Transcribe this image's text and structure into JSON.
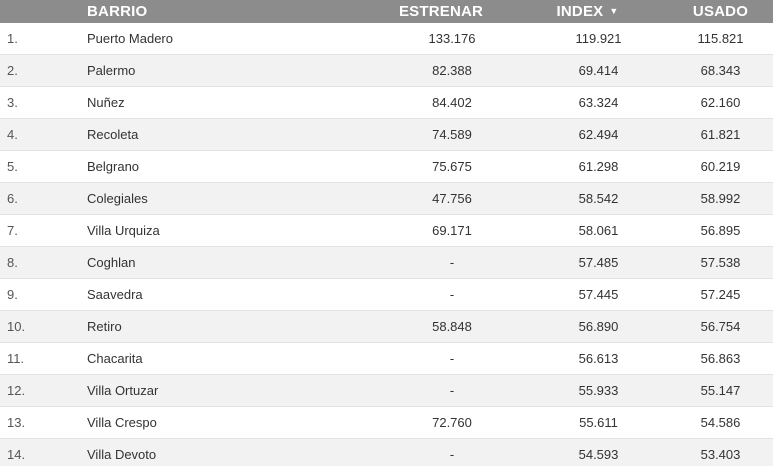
{
  "header": {
    "barrio": "BARRIO",
    "estrenar": "ESTRENAR",
    "index": "INDEX",
    "index_sort_icon": "caret-down-icon",
    "usado": "USADO"
  },
  "rows": [
    {
      "rank": "1.",
      "barrio": "Puerto Madero",
      "estrenar": "133.176",
      "index": "119.921",
      "usado": "115.821"
    },
    {
      "rank": "2.",
      "barrio": "Palermo",
      "estrenar": "82.388",
      "index": "69.414",
      "usado": "68.343"
    },
    {
      "rank": "3.",
      "barrio": "Nuñez",
      "estrenar": "84.402",
      "index": "63.324",
      "usado": "62.160"
    },
    {
      "rank": "4.",
      "barrio": "Recoleta",
      "estrenar": "74.589",
      "index": "62.494",
      "usado": "61.821"
    },
    {
      "rank": "5.",
      "barrio": "Belgrano",
      "estrenar": "75.675",
      "index": "61.298",
      "usado": "60.219"
    },
    {
      "rank": "6.",
      "barrio": "Colegiales",
      "estrenar": "47.756",
      "index": "58.542",
      "usado": "58.992"
    },
    {
      "rank": "7.",
      "barrio": "Villa Urquiza",
      "estrenar": "69.171",
      "index": "58.061",
      "usado": "56.895"
    },
    {
      "rank": "8.",
      "barrio": "Coghlan",
      "estrenar": "-",
      "index": "57.485",
      "usado": "57.538"
    },
    {
      "rank": "9.",
      "barrio": "Saavedra",
      "estrenar": "-",
      "index": "57.445",
      "usado": "57.245"
    },
    {
      "rank": "10.",
      "barrio": "Retiro",
      "estrenar": "58.848",
      "index": "56.890",
      "usado": "56.754"
    },
    {
      "rank": "11.",
      "barrio": "Chacarita",
      "estrenar": "-",
      "index": "56.613",
      "usado": "56.863"
    },
    {
      "rank": "12.",
      "barrio": "Villa Ortuzar",
      "estrenar": "-",
      "index": "55.933",
      "usado": "55.147"
    },
    {
      "rank": "13.",
      "barrio": "Villa Crespo",
      "estrenar": "72.760",
      "index": "55.611",
      "usado": "54.586"
    },
    {
      "rank": "14.",
      "barrio": "Villa Devoto",
      "estrenar": "-",
      "index": "54.593",
      "usado": "53.403"
    }
  ]
}
